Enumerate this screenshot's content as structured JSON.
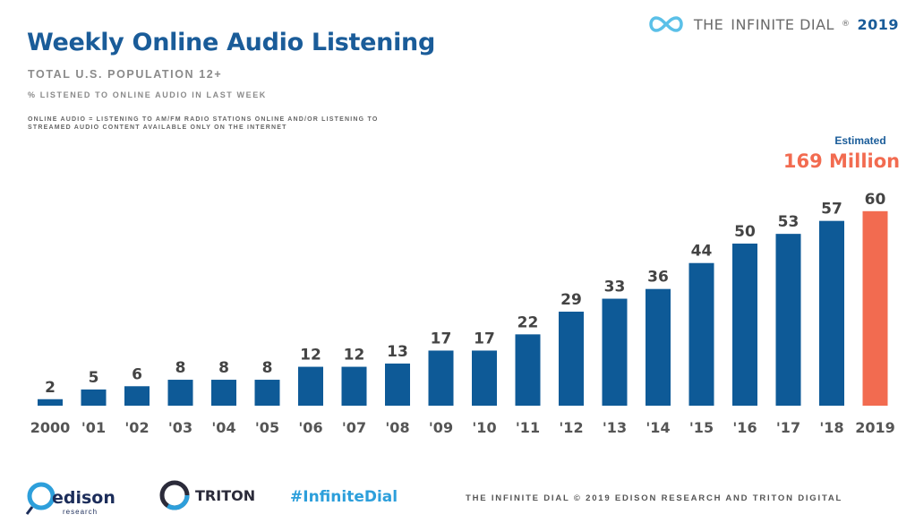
{
  "header": {
    "title": "Weekly Online Audio Listening",
    "subtitle": "TOTAL U.S. POPULATION 12+",
    "measure": "% LISTENED TO ONLINE AUDIO IN LAST WEEK",
    "definition": "ONLINE AUDIO = LISTENING TO AM/FM RADIO STATIONS ONLINE AND/OR LISTENING TO STREAMED AUDIO CONTENT AVAILABLE ONLY ON THE INTERNET"
  },
  "brand": {
    "prefix": "THE",
    "name": "INFINITE DIAL",
    "mark": "®",
    "year": "2019"
  },
  "estimate": {
    "label": "Estimated",
    "value": "169 Million"
  },
  "chart_data": {
    "type": "bar",
    "categories": [
      "2000",
      "'01",
      "'02",
      "'03",
      "'04",
      "'05",
      "'06",
      "'07",
      "'08",
      "'09",
      "'10",
      "'11",
      "'12",
      "'13",
      "'14",
      "'15",
      "'16",
      "'17",
      "'18",
      "2019"
    ],
    "values": [
      2,
      5,
      6,
      8,
      8,
      8,
      12,
      12,
      13,
      17,
      17,
      22,
      29,
      33,
      36,
      44,
      50,
      53,
      57,
      60
    ],
    "colors": {
      "default": "#0e5a97",
      "highlight": "#f26b50"
    },
    "highlight_index": 19,
    "data_labels": true,
    "grid": false,
    "ylim": [
      0,
      60
    ]
  },
  "footer": {
    "edison_name": "edison",
    "edison_sub": "research",
    "triton_name": "TRITON",
    "hashtag": "#InfiniteDial",
    "copyright": "THE INFINITE DIAL   © 2019 EDISON RESEARCH AND TRITON DIGITAL"
  }
}
